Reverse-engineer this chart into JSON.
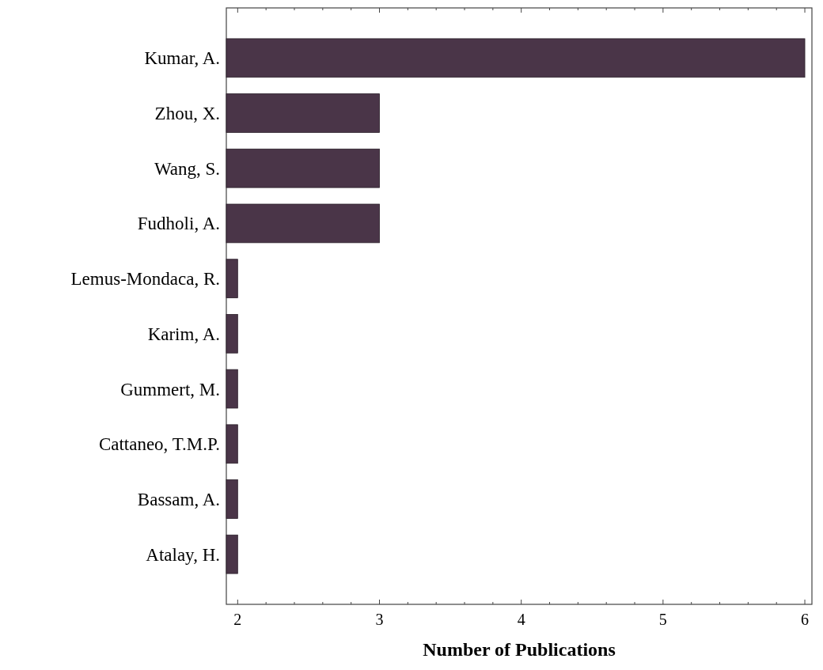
{
  "chart_data": {
    "type": "bar",
    "orientation": "horizontal",
    "xlabel": "Number of Publications",
    "categories": [
      "Kumar, A.",
      "Zhou, X.",
      "Wang, S.",
      "Fudholi, A.",
      "Lemus-Mondaca, R.",
      "Karim, A.",
      "Gummert, M.",
      "Cattaneo, T.M.P.",
      "Bassam, A.",
      "Atalay, H."
    ],
    "values": [
      6,
      3,
      3,
      3,
      2,
      2,
      2,
      2,
      2,
      2
    ],
    "color": "#4a3548",
    "xlim": [
      1.92,
      6.05
    ],
    "xticks": [
      2,
      {
        "value": 2.2,
        "label": null
      },
      {
        "value": 2.4,
        "label": null
      },
      {
        "value": 2.6,
        "label": null
      },
      {
        "value": 2.8,
        "label": null
      },
      3,
      {
        "value": 3.2,
        "label": null
      },
      {
        "value": 3.4,
        "label": null
      },
      {
        "value": 3.6,
        "label": null
      },
      {
        "value": 3.8,
        "label": null
      },
      4,
      {
        "value": 4.2,
        "label": null
      },
      {
        "value": 4.4,
        "label": null
      },
      {
        "value": 4.6,
        "label": null
      },
      {
        "value": 4.8,
        "label": null
      },
      5,
      {
        "value": 5.2,
        "label": null
      },
      {
        "value": 5.4,
        "label": null
      },
      {
        "value": 5.6,
        "label": null
      },
      {
        "value": 5.8,
        "label": null
      },
      6
    ],
    "grid": false
  }
}
